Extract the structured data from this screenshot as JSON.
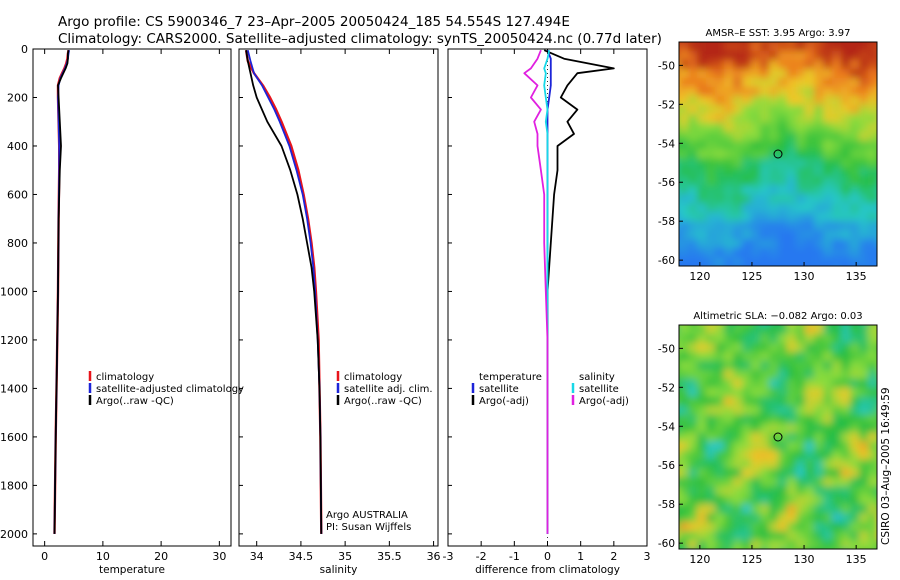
{
  "header": {
    "line1": "Argo profile: CS 5900346_7 23–Apr–2005 20050424_185 54.554S 127.494E",
    "line2": "Climatology: CARS2000. Satellite–adjusted climatology: synTS_20050424.nc (0.77d later)"
  },
  "footer_stamp": "CSIRO 03–Aug–2005 16:49:59",
  "colors": {
    "climatology": "#e8141b",
    "satellite": "#1c24d8",
    "argo": "#000000",
    "sal_satellite": "#18d8e8",
    "sal_argo": "#e020e0"
  },
  "chart_data": [
    {
      "name": "temperature-profile",
      "type": "line",
      "xlabel": "temperature",
      "xlim": [
        -2,
        32
      ],
      "ylim": [
        2050,
        0
      ],
      "xticks": [
        "0",
        "10",
        "20",
        "30"
      ],
      "xtick_values": [
        0,
        10,
        20,
        30
      ],
      "yticks": [
        "0",
        "200",
        "400",
        "600",
        "800",
        "1000",
        "1200",
        "1400",
        "1600",
        "1800",
        "2000"
      ],
      "ytick_values": [
        0,
        200,
        400,
        600,
        800,
        1000,
        1200,
        1400,
        1600,
        1800,
        2000
      ],
      "legend": [
        "climatology",
        "satellite-adjusted climatology",
        "Argo(..raw -QC)"
      ],
      "legend_position": "center-right",
      "depth": [
        5,
        20,
        40,
        60,
        80,
        100,
        120,
        150,
        200,
        300,
        400,
        500,
        700,
        1000,
        1300,
        1600,
        2000
      ],
      "series": [
        {
          "name": "climatology",
          "values": [
            4.1,
            4.0,
            3.9,
            3.7,
            3.4,
            3.0,
            2.6,
            2.3,
            2.3,
            2.4,
            2.5,
            2.5,
            2.4,
            2.3,
            2.1,
            1.9,
            1.7
          ]
        },
        {
          "name": "satellite-adjusted climatology",
          "values": [
            4.2,
            4.1,
            4.0,
            3.8,
            3.5,
            3.1,
            2.7,
            2.4,
            2.3,
            2.4,
            2.5,
            2.5,
            2.4,
            2.3,
            2.1,
            1.9,
            1.7
          ]
        },
        {
          "name": "Argo(..raw -QC)",
          "values": [
            4.1,
            4.0,
            4.0,
            3.9,
            3.6,
            3.2,
            2.8,
            2.3,
            2.4,
            2.6,
            2.8,
            2.6,
            2.4,
            2.3,
            2.1,
            1.9,
            1.7
          ]
        }
      ]
    },
    {
      "name": "salinity-profile",
      "type": "line",
      "xlabel": "salinity",
      "xlim": [
        33.8,
        36.05
      ],
      "ylim": [
        2050,
        0
      ],
      "xticks": [
        "34",
        "34.5",
        "35",
        "35.5",
        "36"
      ],
      "xtick_values": [
        34,
        34.5,
        35,
        35.5,
        36
      ],
      "legend": [
        "climatology",
        "satellite adj. clim.",
        "Argo(..raw -QC)"
      ],
      "legend_position": "center-right",
      "annotation": [
        "Argo AUSTRALIA",
        "PI: Susan Wijffels"
      ],
      "depth": [
        5,
        50,
        100,
        150,
        200,
        250,
        300,
        400,
        500,
        600,
        700,
        800,
        900,
        1000,
        1200,
        1400,
        1600,
        2000
      ],
      "series": [
        {
          "name": "climatology",
          "values": [
            33.88,
            33.9,
            33.97,
            34.07,
            34.15,
            34.22,
            34.28,
            34.39,
            34.47,
            34.53,
            34.58,
            34.62,
            34.65,
            34.67,
            34.7,
            34.71,
            34.72,
            34.73
          ]
        },
        {
          "name": "satellite adj. clim.",
          "values": [
            33.9,
            33.93,
            33.97,
            34.06,
            34.13,
            34.2,
            34.26,
            34.37,
            34.45,
            34.52,
            34.57,
            34.61,
            34.64,
            34.66,
            34.69,
            34.71,
            34.72,
            34.73
          ]
        },
        {
          "name": "Argo(..raw -QC)",
          "values": [
            33.88,
            33.9,
            33.93,
            33.96,
            34.0,
            34.06,
            34.12,
            34.28,
            34.38,
            34.46,
            34.52,
            34.57,
            34.62,
            34.65,
            34.69,
            34.71,
            34.72,
            34.73
          ]
        }
      ]
    },
    {
      "name": "difference-profile",
      "type": "line",
      "xlabel": "difference from climatology",
      "xlim": [
        -3,
        3
      ],
      "ylim": [
        2050,
        0
      ],
      "xticks": [
        "-3",
        "-2",
        "-1",
        "0",
        "1",
        "2",
        "3"
      ],
      "xtick_values": [
        -3,
        -2,
        -1,
        0,
        1,
        2,
        3
      ],
      "legend_left": [
        "temperature",
        "satellite",
        "Argo(-adj)"
      ],
      "legend_right": [
        "salinity",
        "satellite",
        "Argo(-adj)"
      ],
      "legend_position": "center",
      "depth": [
        5,
        40,
        80,
        100,
        150,
        200,
        250,
        300,
        350,
        400,
        500,
        600,
        800,
        1000,
        1200,
        1500,
        2000
      ],
      "series": [
        {
          "name": "temperature satellite",
          "values": [
            0.0,
            0.1,
            0.1,
            0.1,
            0.1,
            0.05,
            0.0,
            0.0,
            0.0,
            0.0,
            0.0,
            0.0,
            0.0,
            0.0,
            0.0,
            0.0,
            0.0
          ]
        },
        {
          "name": "temperature Argo(-adj)",
          "values": [
            -0.1,
            0.5,
            2.0,
            0.9,
            0.6,
            0.4,
            0.9,
            0.6,
            0.8,
            0.3,
            0.3,
            0.2,
            0.1,
            0.0,
            0.0,
            0.0,
            0.0
          ]
        },
        {
          "name": "salinity satellite",
          "values": [
            0.05,
            0.0,
            -0.1,
            -0.05,
            -0.1,
            -0.05,
            0.0,
            -0.05,
            0.0,
            0.0,
            0.0,
            0.0,
            0.0,
            0.0,
            0.0,
            0.0,
            0.0
          ]
        },
        {
          "name": "salinity Argo(-adj)",
          "values": [
            -0.2,
            -0.3,
            -0.5,
            -0.7,
            -0.3,
            -0.5,
            -0.2,
            -0.4,
            -0.3,
            -0.3,
            -0.2,
            -0.1,
            -0.1,
            -0.05,
            0.0,
            0.0,
            0.0
          ]
        }
      ]
    },
    {
      "name": "sst-map",
      "type": "heatmap",
      "title": "AMSR–E SST: 3.95 Argo: 3.97",
      "xlim": [
        118,
        137
      ],
      "ylim": [
        -60.3,
        -48.8
      ],
      "xticks": [
        "120",
        "125",
        "130",
        "135"
      ],
      "xtick_values": [
        120,
        125,
        130,
        135
      ],
      "yticks": [
        "-50",
        "-52",
        "-54",
        "-56",
        "-58",
        "-60"
      ],
      "ytick_values": [
        -50,
        -52,
        -54,
        -56,
        -58,
        -60
      ],
      "marker": {
        "lon": 127.5,
        "lat": -54.55
      }
    },
    {
      "name": "sla-map",
      "type": "heatmap",
      "title": "Altimetric SLA: −0.082 Argo: 0.03",
      "xlim": [
        118,
        137
      ],
      "ylim": [
        -60.3,
        -48.8
      ],
      "xticks": [
        "120",
        "125",
        "130",
        "135"
      ],
      "xtick_values": [
        120,
        125,
        130,
        135
      ],
      "yticks": [
        "-50",
        "-52",
        "-54",
        "-56",
        "-58",
        "-60"
      ],
      "ytick_values": [
        -50,
        -52,
        -54,
        -56,
        -58,
        -60
      ],
      "marker": {
        "lon": 127.5,
        "lat": -54.55
      }
    }
  ]
}
